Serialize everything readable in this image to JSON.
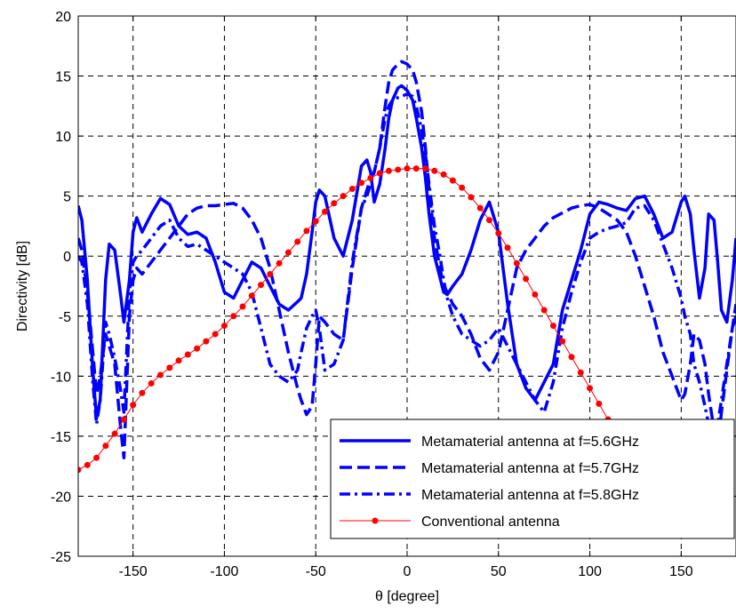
{
  "chart_data": {
    "type": "line",
    "xlabel": "θ [degree]",
    "ylabel": "Directivity [dB]",
    "xlim": [
      -180,
      180
    ],
    "ylim": [
      -25,
      20
    ],
    "xticks": [
      -150,
      -100,
      -50,
      0,
      50,
      100,
      150
    ],
    "yticks": [
      -25,
      -20,
      -15,
      -10,
      -5,
      0,
      5,
      10,
      15,
      20
    ],
    "grid": true,
    "legend_position": "bottom-right",
    "series": [
      {
        "name": "Metamaterial antenna at f=5.6GHz",
        "color": "#0000FF",
        "style": "solid",
        "x": [
          -180,
          -178,
          -175,
          -172,
          -170,
          -168,
          -165,
          -163,
          -160,
          -157,
          -155,
          -152,
          -150,
          -148,
          -145,
          -140,
          -135,
          -130,
          -125,
          -120,
          -115,
          -110,
          -105,
          -100,
          -95,
          -90,
          -85,
          -80,
          -75,
          -70,
          -65,
          -60,
          -58,
          -55,
          -52,
          -50,
          -48,
          -45,
          -40,
          -35,
          -30,
          -25,
          -22,
          -20,
          -18,
          -15,
          -12,
          -10,
          -8,
          -5,
          -3,
          0,
          3,
          5,
          8,
          10,
          12,
          15,
          18,
          20,
          22,
          25,
          30,
          35,
          40,
          45,
          50,
          55,
          60,
          65,
          70,
          75,
          80,
          85,
          90,
          95,
          100,
          105,
          110,
          115,
          120,
          125,
          130,
          135,
          140,
          145,
          150,
          152,
          155,
          157,
          160,
          163,
          165,
          168,
          170,
          172,
          175,
          178,
          180
        ],
        "y": [
          4.2,
          3.0,
          -2.0,
          -9.5,
          -13.5,
          -12.0,
          -2.0,
          1.0,
          0.5,
          -3.0,
          -5.5,
          -2.0,
          2.0,
          3.2,
          2.0,
          3.5,
          4.8,
          4.3,
          2.5,
          1.8,
          2.0,
          1.5,
          -0.5,
          -3.0,
          -3.5,
          -2.0,
          -0.5,
          -1.0,
          -2.5,
          -4.0,
          -4.5,
          -3.8,
          -3.5,
          -1.5,
          2.0,
          4.5,
          5.5,
          5.0,
          1.5,
          0.0,
          3.0,
          7.5,
          8.0,
          7.0,
          4.5,
          6.0,
          9.0,
          11.5,
          13.0,
          14.0,
          14.2,
          13.8,
          13.0,
          11.5,
          9.0,
          6.5,
          3.5,
          0.0,
          -1.8,
          -3.0,
          -3.2,
          -2.5,
          -1.5,
          0.5,
          3.0,
          4.5,
          2.0,
          -4.0,
          -9.0,
          -11.0,
          -12.0,
          -10.5,
          -9.0,
          -4.5,
          -2.0,
          0.5,
          3.5,
          4.5,
          4.3,
          4.0,
          3.8,
          4.8,
          5.0,
          3.5,
          1.5,
          2.0,
          4.5,
          5.0,
          3.5,
          0.5,
          -3.5,
          -1.0,
          3.5,
          3.0,
          -0.5,
          -4.5,
          -5.5,
          -2.0,
          1.5
        ]
      },
      {
        "name": "Metamaterial antenna at f=5.7GHz",
        "color": "#0000FF",
        "style": "dashed",
        "x": [
          -180,
          -178,
          -175,
          -172,
          -170,
          -168,
          -165,
          -163,
          -160,
          -157,
          -155,
          -152,
          -150,
          -148,
          -145,
          -140,
          -135,
          -130,
          -125,
          -120,
          -115,
          -110,
          -105,
          -100,
          -95,
          -90,
          -85,
          -80,
          -75,
          -70,
          -65,
          -60,
          -58,
          -55,
          -52,
          -50,
          -48,
          -45,
          -40,
          -35,
          -30,
          -25,
          -22,
          -20,
          -18,
          -15,
          -12,
          -10,
          -8,
          -5,
          -3,
          0,
          3,
          5,
          8,
          10,
          12,
          15,
          18,
          20,
          22,
          25,
          30,
          35,
          40,
          45,
          50,
          55,
          60,
          65,
          70,
          75,
          80,
          85,
          90,
          95,
          100,
          105,
          110,
          115,
          120,
          125,
          130,
          135,
          140,
          145,
          150,
          152,
          155,
          157,
          160,
          163,
          165,
          168,
          170,
          172,
          175,
          178,
          180
        ],
        "y": [
          1.5,
          0.5,
          -3.0,
          -8.0,
          -11.5,
          -10.0,
          -6.5,
          -7.5,
          -9.0,
          -14.0,
          -16.8,
          -5.0,
          -2.0,
          -1.0,
          -1.5,
          -0.5,
          0.5,
          1.5,
          2.5,
          3.5,
          4.0,
          4.2,
          4.2,
          4.3,
          4.4,
          4.0,
          3.0,
          1.5,
          -1.0,
          -4.5,
          -8.0,
          -11.0,
          -12.0,
          -13.2,
          -12.5,
          -9.0,
          -5.0,
          -5.5,
          -6.5,
          -7.0,
          -1.0,
          4.0,
          5.5,
          6.5,
          7.0,
          9.0,
          12.5,
          14.5,
          15.5,
          16.0,
          16.2,
          16.0,
          15.5,
          14.5,
          12.0,
          9.0,
          5.5,
          1.5,
          -1.0,
          -2.5,
          -3.0,
          -4.0,
          -5.0,
          -6.5,
          -8.5,
          -9.5,
          -8.0,
          -4.5,
          -1.0,
          0.5,
          1.5,
          2.5,
          3.2,
          3.6,
          4.0,
          4.2,
          4.3,
          4.0,
          3.5,
          3.0,
          2.0,
          0.0,
          -2.5,
          -5.0,
          -8.0,
          -10.0,
          -12.0,
          -11.5,
          -9.0,
          -6.5,
          -7.0,
          -9.0,
          -11.5,
          -14.5,
          -16.0,
          -13.0,
          -9.5,
          -6.0,
          -4.0
        ]
      },
      {
        "name": "Metamaterial antenna at f=5.8GHz",
        "color": "#0000FF",
        "style": "dashdot",
        "x": [
          -180,
          -178,
          -175,
          -172,
          -170,
          -168,
          -165,
          -163,
          -160,
          -157,
          -155,
          -152,
          -150,
          -148,
          -145,
          -140,
          -135,
          -130,
          -125,
          -120,
          -115,
          -110,
          -105,
          -100,
          -95,
          -90,
          -85,
          -80,
          -75,
          -70,
          -65,
          -60,
          -58,
          -55,
          -52,
          -50,
          -48,
          -45,
          -40,
          -35,
          -30,
          -25,
          -22,
          -20,
          -18,
          -15,
          -12,
          -10,
          -8,
          -5,
          -3,
          0,
          3,
          5,
          8,
          10,
          12,
          15,
          18,
          20,
          22,
          25,
          30,
          35,
          40,
          45,
          50,
          55,
          60,
          65,
          70,
          75,
          80,
          85,
          90,
          95,
          100,
          105,
          110,
          115,
          120,
          125,
          130,
          135,
          140,
          145,
          150,
          152,
          155,
          157,
          160,
          163,
          165,
          168,
          170,
          172,
          175,
          178,
          180
        ],
        "y": [
          0.0,
          -0.5,
          -4.0,
          -10.5,
          -14.0,
          -12.0,
          -5.5,
          -6.5,
          -8.5,
          -11.0,
          -13.0,
          -3.0,
          -0.5,
          0.0,
          0.5,
          1.5,
          2.5,
          3.0,
          1.5,
          0.8,
          1.0,
          0.5,
          0.0,
          -0.5,
          -1.0,
          -1.5,
          -3.0,
          -6.0,
          -9.0,
          -10.0,
          -10.5,
          -9.5,
          -8.0,
          -6.0,
          -5.0,
          -4.5,
          -6.0,
          -9.5,
          -9.0,
          -7.0,
          -0.5,
          4.0,
          5.0,
          6.0,
          7.0,
          9.0,
          11.5,
          12.5,
          13.0,
          13.2,
          13.3,
          13.5,
          13.3,
          12.5,
          10.5,
          8.5,
          6.0,
          2.5,
          0.0,
          -2.0,
          -3.5,
          -5.0,
          -6.5,
          -7.0,
          -7.5,
          -7.0,
          -6.0,
          -7.5,
          -9.0,
          -10.5,
          -12.0,
          -13.0,
          -10.5,
          -6.0,
          -3.0,
          -0.5,
          1.5,
          2.0,
          2.3,
          2.5,
          2.8,
          4.0,
          4.2,
          3.0,
          1.0,
          -1.0,
          -3.5,
          -5.0,
          -6.5,
          -9.0,
          -10.5,
          -12.5,
          -14.0,
          -15.0,
          -14.0,
          -12.0,
          -9.0,
          -6.0,
          -5.0
        ]
      },
      {
        "name": "Conventional antenna",
        "color": "#FF0000",
        "style": "solid-marker",
        "x": [
          -180,
          -175,
          -170,
          -165,
          -160,
          -155,
          -150,
          -145,
          -140,
          -135,
          -130,
          -125,
          -120,
          -115,
          -110,
          -105,
          -100,
          -95,
          -90,
          -85,
          -80,
          -75,
          -70,
          -65,
          -60,
          -55,
          -50,
          -45,
          -40,
          -35,
          -30,
          -25,
          -20,
          -15,
          -10,
          -5,
          0,
          5,
          10,
          15,
          20,
          25,
          30,
          35,
          40,
          45,
          50,
          55,
          60,
          65,
          70,
          75,
          80,
          85,
          90,
          95,
          100,
          105,
          110,
          115,
          120,
          125,
          130
        ],
        "y": [
          -17.8,
          -17.4,
          -16.8,
          -15.8,
          -14.8,
          -13.6,
          -12.4,
          -11.4,
          -10.6,
          -9.9,
          -9.3,
          -8.7,
          -8.2,
          -7.7,
          -7.1,
          -6.5,
          -5.8,
          -5.0,
          -4.2,
          -3.3,
          -2.4,
          -1.5,
          -0.6,
          0.3,
          1.2,
          2.1,
          2.9,
          3.7,
          4.4,
          5.0,
          5.6,
          6.1,
          6.5,
          6.9,
          7.1,
          7.2,
          7.3,
          7.3,
          7.3,
          7.1,
          6.8,
          6.3,
          5.7,
          4.9,
          4.0,
          3.0,
          1.9,
          0.7,
          -0.6,
          -1.9,
          -3.2,
          -4.5,
          -5.8,
          -7.1,
          -8.4,
          -9.7,
          -11.0,
          -12.3,
          -13.6,
          -14.8,
          -16.0,
          -17.2,
          -18.3
        ]
      }
    ]
  }
}
